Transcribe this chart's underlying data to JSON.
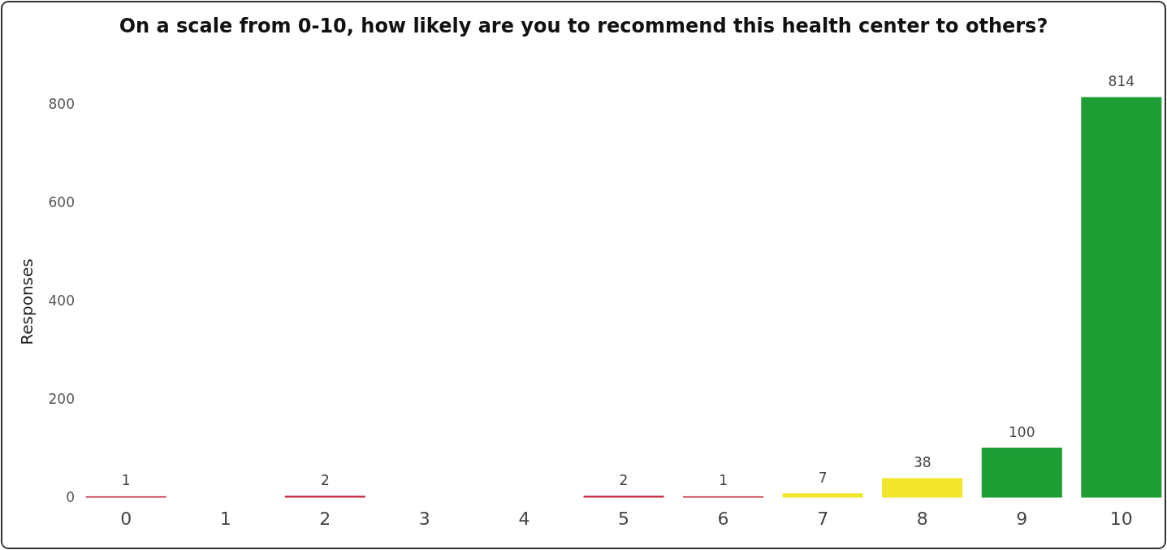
{
  "chart_data": {
    "type": "bar",
    "title": "On a scale from 0-10, how likely are you to recommend this health center to others?",
    "ylabel": "Responses",
    "categories": [
      "0",
      "1",
      "2",
      "3",
      "4",
      "5",
      "6",
      "7",
      "8",
      "9",
      "10"
    ],
    "values": [
      1,
      null,
      2,
      null,
      null,
      2,
      1,
      7,
      38,
      100,
      814
    ],
    "colors": [
      "#c0283c",
      null,
      "#c0283c",
      null,
      null,
      "#c0283c",
      "#c0283c",
      "#f2e62c",
      "#f2e62c",
      "#1f9e35",
      "#1f9e35"
    ],
    "ylim": [
      0,
      814
    ],
    "yticks": [
      0,
      200,
      400,
      600,
      800
    ],
    "grid": false,
    "data_labels": true
  }
}
